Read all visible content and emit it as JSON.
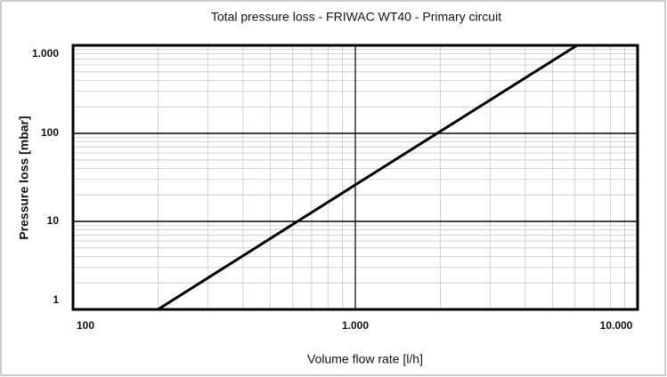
{
  "chart_data": {
    "type": "line",
    "title": "Total pressure loss - FRIWAC WT40 - Primary circuit",
    "x_label": "Volume flow rate [l/h]",
    "y_label": "Pressure loss [mbar]",
    "x": [
      200,
      1000,
      6100
    ],
    "values": [
      1,
      26,
      1000
    ],
    "color": "#000000",
    "xlim": [
      100,
      10000
    ],
    "ylim": [
      1,
      1000
    ],
    "xscale": "log",
    "yscale": "log",
    "xticks": [
      100,
      {
        "value": 1000,
        "label": "1.000"
      },
      {
        "value": 10000,
        "label": "10.000"
      }
    ],
    "yticks": [
      1,
      10,
      100,
      {
        "value": 1000,
        "label": "1.000"
      }
    ],
    "grid": true
  }
}
